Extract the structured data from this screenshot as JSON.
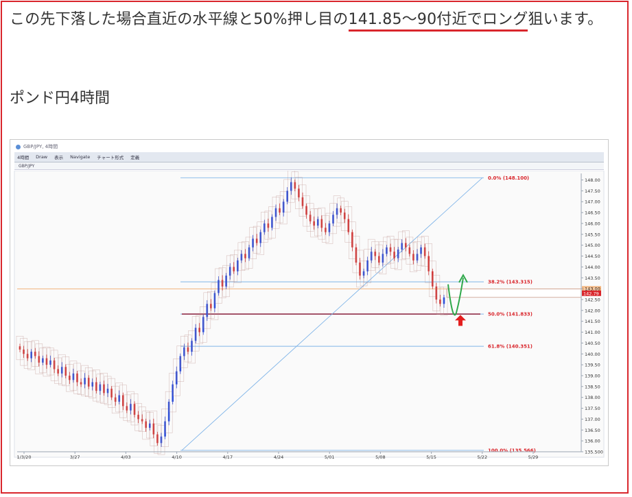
{
  "article": {
    "text_before": "この先下落した場合直近の水平線と50%押し目の",
    "text_highlight": "141.85～90付近でロング",
    "text_after": "狙います。",
    "subheading": "ポンド円4時間"
  },
  "screenshot": {
    "window_title": "GBP/JPY, 4時間",
    "toolbar_items": [
      "4時間",
      "Draw",
      "表示",
      "Navigate",
      "チャート形式",
      "定義"
    ],
    "symbol_tab": "GBP/JPY"
  },
  "colors": {
    "frame": "#d9262c",
    "bull": "#2f4fd8",
    "bear": "#d23a3a",
    "fib": "#7fb4e8",
    "fib_label": "#d9262c",
    "hline": "#8a1f3a",
    "orange_line": "#f2b27a",
    "green_arrow": "#2ea84a",
    "red_arrow": "#e41e1e"
  },
  "chart_data": {
    "type": "line",
    "title": "",
    "xlabel": "",
    "ylabel": "",
    "x_ticks": [
      "1/3/20",
      "3/27",
      "4/03",
      "4/10",
      "4/17",
      "4/24",
      "5/01",
      "5/08",
      "5/15",
      "5/22",
      "5/29"
    ],
    "y_ticks": [
      "148.00",
      "147.50",
      "147.00",
      "146.50",
      "146.00",
      "145.50",
      "145.00",
      "144.50",
      "144.00",
      "143.50",
      "143.00",
      "142.50",
      "142.00",
      "141.50",
      "141.00",
      "140.50",
      "140.00",
      "139.50",
      "139.00",
      "138.50",
      "138.00",
      "137.50",
      "137.00",
      "136.50",
      "136.00",
      "135.500"
    ],
    "ylim": [
      135.5,
      148.3
    ],
    "fib_levels": [
      {
        "label": "0.0%  (148.100)",
        "value": 148.1
      },
      {
        "label": "38.2%  (143.315)",
        "value": 143.315
      },
      {
        "label": "50.0%  (141.833)",
        "value": 141.833
      },
      {
        "label": "61.8%  (140.351)",
        "value": 140.351
      },
      {
        "label": "100.0%  (135.566)",
        "value": 135.566
      }
    ],
    "price_tags": [
      "142.99",
      "142.79"
    ],
    "close_series": [
      140.2,
      140.0,
      139.8,
      140.1,
      139.9,
      139.6,
      139.8,
      139.5,
      139.7,
      139.3,
      139.1,
      139.4,
      139.0,
      138.8,
      139.1,
      138.7,
      138.6,
      138.9,
      138.5,
      138.7,
      138.3,
      138.6,
      138.2,
      138.4,
      138.0,
      137.8,
      138.1,
      137.6,
      137.4,
      137.7,
      137.2,
      137.0,
      136.9,
      136.6,
      136.8,
      136.3,
      135.9,
      136.2,
      136.9,
      137.8,
      138.6,
      139.2,
      139.9,
      140.3,
      140.1,
      140.6,
      141.2,
      141.0,
      141.7,
      142.3,
      142.1,
      142.8,
      143.4,
      143.1,
      143.6,
      144.0,
      143.8,
      144.3,
      144.6,
      144.4,
      144.9,
      145.3,
      145.1,
      145.6,
      146.0,
      145.8,
      146.3,
      146.7,
      146.5,
      147.0,
      147.5,
      147.9,
      147.6,
      147.2,
      146.8,
      146.4,
      146.1,
      145.9,
      146.2,
      145.8,
      145.6,
      146.0,
      146.4,
      146.7,
      146.5,
      146.2,
      145.6,
      144.9,
      144.2,
      143.6,
      143.8,
      144.3,
      144.7,
      144.5,
      144.2,
      144.6,
      144.9,
      144.7,
      144.4,
      144.8,
      145.1,
      144.9,
      144.6,
      144.3,
      144.6,
      144.9,
      144.5,
      143.8,
      143.1,
      142.5,
      142.3,
      142.6
    ]
  }
}
